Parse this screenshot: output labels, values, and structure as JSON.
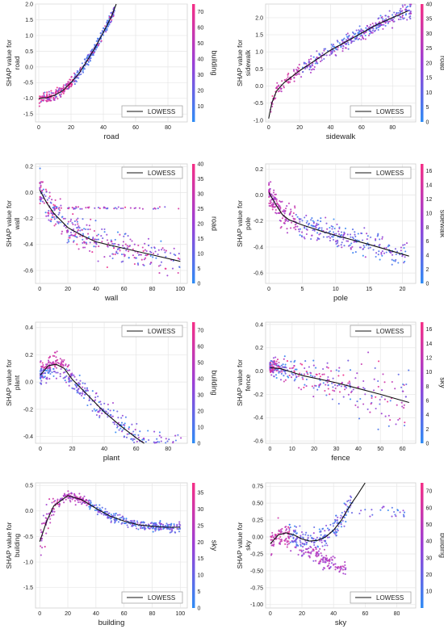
{
  "figure": {
    "panel_count": 8
  },
  "colormap": {
    "low": "#2f8cf5",
    "mid": "#9b3fd6",
    "high": "#f52f86"
  },
  "legend_label": "LOWESS",
  "chart_data": [
    {
      "type": "scatter",
      "feature": "road",
      "xlabel": "road",
      "ylabel": "SHAP value for road",
      "colorbar_label": "building",
      "xlim": [
        -2,
        92
      ],
      "ylim": [
        -1.75,
        2.0
      ],
      "xticks": [
        0,
        20,
        40,
        60,
        80
      ],
      "yticks": [
        -1.5,
        -1.0,
        -0.5,
        0.0,
        0.5,
        1.0,
        1.5,
        2.0
      ],
      "ytick_labels": [
        "-1.5",
        "-1.0",
        "-0.5",
        "0.0",
        "0.5",
        "1.0",
        "1.5",
        "2.0"
      ],
      "cticks": [
        10,
        20,
        30,
        40,
        50,
        60,
        70
      ],
      "crange": [
        0,
        75
      ],
      "legend_position": "lower-right",
      "lowess": [
        [
          0,
          -1.0
        ],
        [
          5,
          -0.98
        ],
        [
          10,
          -0.9
        ],
        [
          15,
          -0.75
        ],
        [
          20,
          -0.5
        ],
        [
          25,
          -0.2
        ],
        [
          30,
          0.2
        ],
        [
          35,
          0.62
        ],
        [
          40,
          1.1
        ],
        [
          45,
          1.6
        ],
        [
          48,
          2.0
        ]
      ],
      "gen": {
        "shape": "road",
        "n": 380,
        "seed": 11
      }
    },
    {
      "type": "scatter",
      "feature": "sidewalk",
      "xlabel": "sidewalk",
      "ylabel": "SHAP value for sidewalk",
      "colorbar_label": "road",
      "xlim": [
        -2,
        95
      ],
      "ylim": [
        -1.05,
        2.4
      ],
      "xticks": [
        0,
        20,
        40,
        60,
        80
      ],
      "yticks": [
        -1.0,
        -0.5,
        0.0,
        0.5,
        1.0,
        1.5,
        2.0
      ],
      "ytick_labels": [
        "-1.0",
        "-0.5",
        "0.0",
        "0.5",
        "1.0",
        "1.5",
        "2.0"
      ],
      "cticks": [
        0,
        5,
        10,
        15,
        20,
        25,
        30,
        35,
        40
      ],
      "crange": [
        0,
        40
      ],
      "legend_position": "lower-right",
      "lowess": [
        [
          0,
          -0.95
        ],
        [
          2,
          -0.5
        ],
        [
          5,
          -0.15
        ],
        [
          10,
          0.1
        ],
        [
          20,
          0.45
        ],
        [
          30,
          0.75
        ],
        [
          40,
          1.05
        ],
        [
          50,
          1.3
        ],
        [
          60,
          1.55
        ],
        [
          70,
          1.8
        ],
        [
          80,
          2.0
        ],
        [
          90,
          2.2
        ]
      ],
      "gen": {
        "shape": "sidewalk",
        "n": 420,
        "seed": 23
      }
    },
    {
      "type": "scatter",
      "feature": "wall",
      "xlabel": "wall",
      "ylabel": "SHAP value for wall",
      "colorbar_label": "road",
      "xlim": [
        -3,
        105
      ],
      "ylim": [
        -0.7,
        0.22
      ],
      "xticks": [
        0,
        20,
        40,
        60,
        80,
        100
      ],
      "yticks": [
        -0.6,
        -0.4,
        -0.2,
        0.0,
        0.2
      ],
      "ytick_labels": [
        "-0.6",
        "-0.4",
        "-0.2",
        "0.0",
        "0.2"
      ],
      "cticks": [
        0,
        5,
        10,
        15,
        20,
        25,
        30,
        35,
        40
      ],
      "crange": [
        0,
        40
      ],
      "legend_position": "upper-right",
      "lowess": [
        [
          0,
          0.02
        ],
        [
          5,
          -0.08
        ],
        [
          10,
          -0.16
        ],
        [
          20,
          -0.27
        ],
        [
          30,
          -0.33
        ],
        [
          40,
          -0.38
        ],
        [
          60,
          -0.43
        ],
        [
          80,
          -0.48
        ],
        [
          100,
          -0.53
        ]
      ],
      "gen": {
        "shape": "wall",
        "n": 400,
        "seed": 37
      }
    },
    {
      "type": "scatter",
      "feature": "pole",
      "xlabel": "pole",
      "ylabel": "SHAP value for pole",
      "colorbar_label": "sidewalk",
      "xlim": [
        -0.5,
        22
      ],
      "ylim": [
        -0.68,
        0.24
      ],
      "xticks": [
        0,
        5,
        10,
        15,
        20
      ],
      "yticks": [
        -0.6,
        -0.4,
        -0.2,
        0.0,
        0.2
      ],
      "ytick_labels": [
        "-0.6",
        "-0.4",
        "-0.2",
        "0.0",
        "0.2"
      ],
      "cticks": [
        0,
        2,
        4,
        6,
        8,
        10,
        12,
        14,
        16
      ],
      "crange": [
        0,
        17
      ],
      "legend_position": "upper-right",
      "lowess": [
        [
          0,
          0.02
        ],
        [
          1,
          -0.07
        ],
        [
          2,
          -0.15
        ],
        [
          3,
          -0.19
        ],
        [
          5,
          -0.23
        ],
        [
          8,
          -0.28
        ],
        [
          10,
          -0.31
        ],
        [
          15,
          -0.38
        ],
        [
          21,
          -0.47
        ]
      ],
      "gen": {
        "shape": "pole",
        "n": 380,
        "seed": 41
      }
    },
    {
      "type": "scatter",
      "feature": "plant",
      "xlabel": "plant",
      "ylabel": "SHAP value for plant",
      "colorbar_label": "building",
      "xlim": [
        -3,
        92
      ],
      "ylim": [
        -0.45,
        0.44
      ],
      "xticks": [
        0,
        20,
        40,
        60,
        80
      ],
      "yticks": [
        -0.4,
        -0.2,
        0.0,
        0.2,
        0.4
      ],
      "ytick_labels": [
        "-0.4",
        "-0.2",
        "0.0",
        "0.2",
        "0.4"
      ],
      "cticks": [
        0,
        10,
        20,
        30,
        40,
        50,
        60,
        70
      ],
      "crange": [
        0,
        75
      ],
      "legend_position": "upper-right",
      "lowess": [
        [
          0,
          0.05
        ],
        [
          5,
          0.12
        ],
        [
          10,
          0.13
        ],
        [
          15,
          0.1
        ],
        [
          20,
          0.02
        ],
        [
          30,
          -0.1
        ],
        [
          40,
          -0.22
        ],
        [
          50,
          -0.32
        ],
        [
          60,
          -0.41
        ],
        [
          65,
          -0.46
        ]
      ],
      "gen": {
        "shape": "plant",
        "n": 400,
        "seed": 53
      }
    },
    {
      "type": "scatter",
      "feature": "fence",
      "xlabel": "fence",
      "ylabel": "SHAP value for fence",
      "colorbar_label": "sky",
      "xlim": [
        -2,
        66
      ],
      "ylim": [
        -0.62,
        0.42
      ],
      "xticks": [
        0,
        10,
        20,
        30,
        40,
        50,
        60
      ],
      "yticks": [
        -0.6,
        -0.4,
        -0.2,
        0.0,
        0.2,
        0.4
      ],
      "ytick_labels": [
        "-0.6",
        "-0.4",
        "-0.2",
        "0.0",
        "0.2",
        "0.4"
      ],
      "cticks": [
        0,
        2,
        4,
        6,
        8,
        10,
        12,
        14,
        16
      ],
      "crange": [
        0,
        17
      ],
      "legend_position": "upper-right",
      "lowess": [
        [
          0,
          0.03
        ],
        [
          5,
          0.02
        ],
        [
          10,
          -0.01
        ],
        [
          15,
          -0.04
        ],
        [
          20,
          -0.06
        ],
        [
          30,
          -0.1
        ],
        [
          40,
          -0.15
        ],
        [
          50,
          -0.2
        ],
        [
          63,
          -0.27
        ]
      ],
      "gen": {
        "shape": "fence",
        "n": 340,
        "seed": 67
      }
    },
    {
      "type": "scatter",
      "feature": "building",
      "xlabel": "building",
      "ylabel": "SHAP value for building",
      "colorbar_label": "sky",
      "xlim": [
        -3,
        105
      ],
      "ylim": [
        -1.9,
        0.55
      ],
      "xticks": [
        0,
        20,
        40,
        60,
        80,
        100
      ],
      "yticks": [
        -1.5,
        -1.0,
        -0.5,
        0.0,
        0.5
      ],
      "ytick_labels": [
        "-1.5",
        "-1.0",
        "-0.5",
        "0.0",
        "0.5"
      ],
      "cticks": [
        0,
        5,
        10,
        15,
        20,
        25,
        30,
        35
      ],
      "crange": [
        0,
        38
      ],
      "legend_position": "lower-right",
      "lowess": [
        [
          0,
          -0.6
        ],
        [
          5,
          -0.2
        ],
        [
          10,
          0.1
        ],
        [
          20,
          0.3
        ],
        [
          30,
          0.22
        ],
        [
          40,
          0.05
        ],
        [
          50,
          -0.1
        ],
        [
          60,
          -0.2
        ],
        [
          70,
          -0.27
        ],
        [
          80,
          -0.3
        ],
        [
          90,
          -0.32
        ],
        [
          100,
          -0.32
        ]
      ],
      "gen": {
        "shape": "building",
        "n": 430,
        "seed": 79
      }
    },
    {
      "type": "scatter",
      "feature": "sky",
      "xlabel": "sky",
      "ylabel": "SHAP value for sky",
      "colorbar_label": "building",
      "xlim": [
        -3,
        92
      ],
      "ylim": [
        -1.05,
        0.8
      ],
      "xticks": [
        0,
        20,
        40,
        60,
        80
      ],
      "yticks": [
        -1.0,
        -0.75,
        -0.5,
        -0.25,
        0.0,
        0.25,
        0.5,
        0.75
      ],
      "ytick_labels": [
        "-1.00",
        "-0.75",
        "-0.50",
        "-0.25",
        "0.00",
        "0.25",
        "0.50",
        "0.75"
      ],
      "cticks": [
        10,
        20,
        30,
        40,
        50,
        60,
        70
      ],
      "crange": [
        0,
        75
      ],
      "legend_position": "lower-right",
      "lowess": [
        [
          0,
          -0.1
        ],
        [
          5,
          0.03
        ],
        [
          10,
          0.06
        ],
        [
          15,
          0.03
        ],
        [
          20,
          -0.03
        ],
        [
          25,
          -0.06
        ],
        [
          30,
          -0.05
        ],
        [
          35,
          0.0
        ],
        [
          40,
          0.1
        ],
        [
          45,
          0.25
        ],
        [
          50,
          0.45
        ],
        [
          55,
          0.62
        ],
        [
          60,
          0.8
        ]
      ],
      "gen": {
        "shape": "sky",
        "n": 430,
        "seed": 97
      }
    }
  ]
}
